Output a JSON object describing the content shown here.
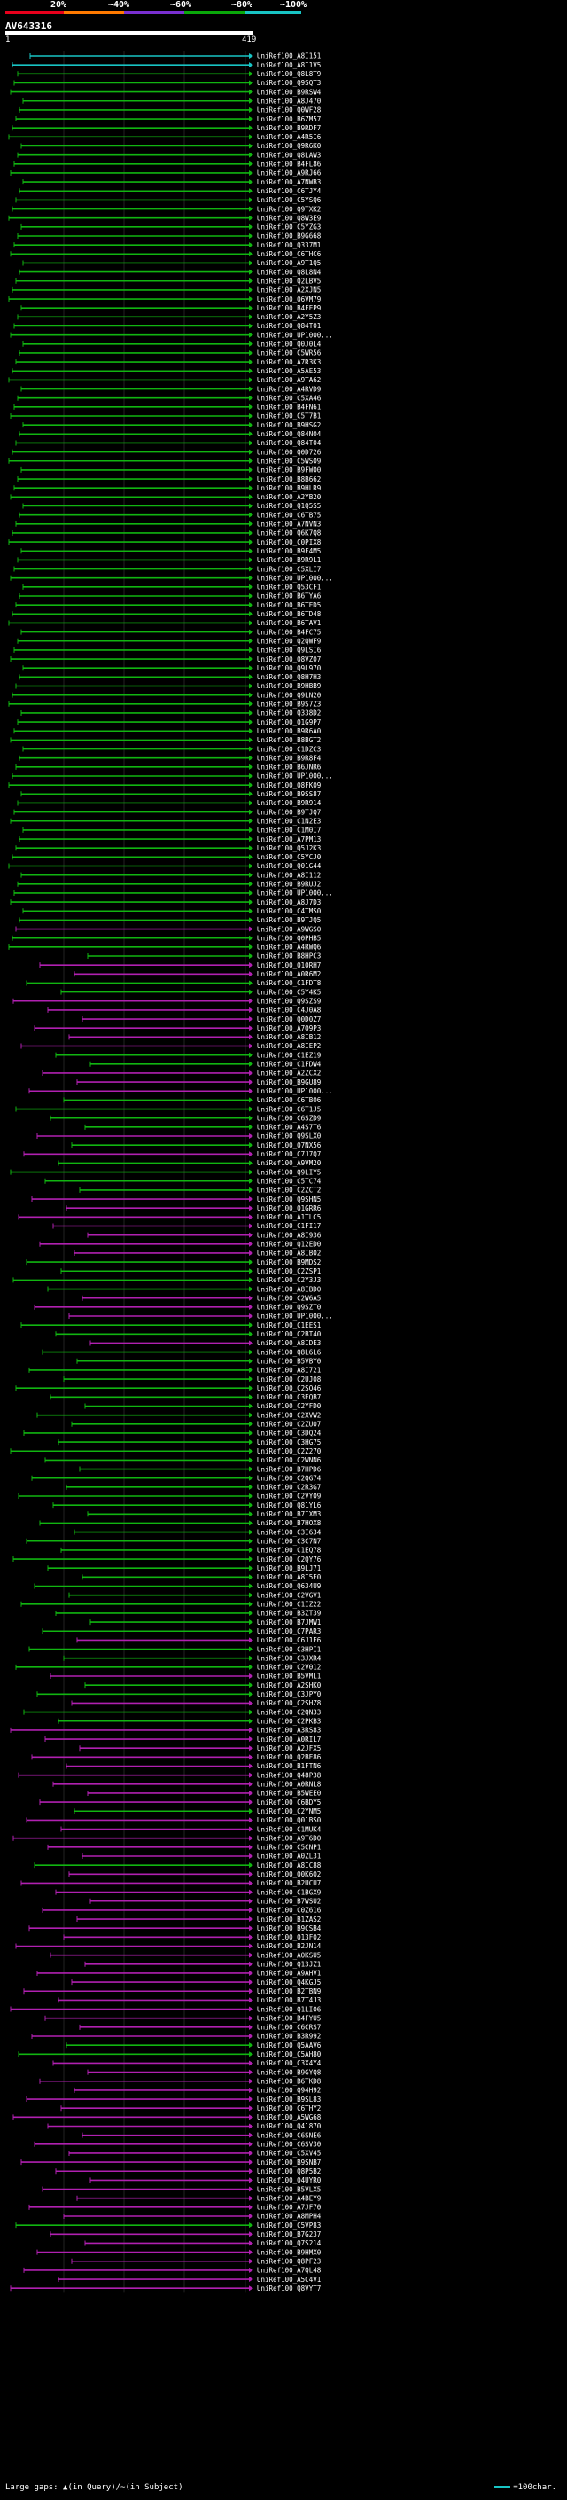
{
  "legend": {
    "labels": [
      "20%",
      "~40%",
      "~60%",
      "~80%",
      "~100%"
    ],
    "colors": [
      "#e8001c",
      "#ff7a00",
      "#7a2fd0",
      "#0aa80a",
      "#18c4c4"
    ]
  },
  "query": {
    "name": "AV643316",
    "start": "1",
    "end": "419"
  },
  "footer": {
    "gaps_text": "Large gaps: ▲(in Query)/~(in Subject)",
    "scale_text": "=100char."
  },
  "hit_colors": {
    "cyan": "#18c4c4",
    "green": "#11b511",
    "magenta": "#b020b0"
  },
  "hits": [
    {
      "name": "UniRef100_A8I151",
      "color": "cyan"
    },
    {
      "name": "UniRef100_A8I1V5",
      "color": "cyan"
    },
    {
      "name": "UniRef100_Q8L8T9",
      "color": "green"
    },
    {
      "name": "UniRef100_Q9SQT3",
      "color": "green"
    },
    {
      "name": "UniRef100_B9RSW4",
      "color": "green"
    },
    {
      "name": "UniRef100_A8J470",
      "color": "green"
    },
    {
      "name": "UniRef100_Q0WF28",
      "color": "green"
    },
    {
      "name": "UniRef100_B6ZM57",
      "color": "green"
    },
    {
      "name": "UniRef100_B9RDF7",
      "color": "green"
    },
    {
      "name": "UniRef100_A4R5I6",
      "color": "green"
    },
    {
      "name": "UniRef100_Q9R6K0",
      "color": "green"
    },
    {
      "name": "UniRef100_Q8LAW3",
      "color": "green"
    },
    {
      "name": "UniRef100_B4FL86",
      "color": "green"
    },
    {
      "name": "UniRef100_A9RJ66",
      "color": "green"
    },
    {
      "name": "UniRef100_A7NWB3",
      "color": "green"
    },
    {
      "name": "UniRef100_C6TJY4",
      "color": "green"
    },
    {
      "name": "UniRef100_C5YSQ6",
      "color": "green"
    },
    {
      "name": "UniRef100_Q9TXK2",
      "color": "green"
    },
    {
      "name": "UniRef100_Q8W3E9",
      "color": "green"
    },
    {
      "name": "UniRef100_C5YZG3",
      "color": "green"
    },
    {
      "name": "UniRef100_B9G668",
      "color": "green"
    },
    {
      "name": "UniRef100_Q337M1",
      "color": "green"
    },
    {
      "name": "UniRef100_C6THC6",
      "color": "green"
    },
    {
      "name": "UniRef100_A9T1Q5",
      "color": "green"
    },
    {
      "name": "UniRef100_Q8L8N4",
      "color": "green"
    },
    {
      "name": "UniRef100_Q2LBV5",
      "color": "green"
    },
    {
      "name": "UniRef100_A2XJN5",
      "color": "green"
    },
    {
      "name": "UniRef100_Q6VM79",
      "color": "green"
    },
    {
      "name": "UniRef100_B4FEP9",
      "color": "green"
    },
    {
      "name": "UniRef100_A2Y5Z3",
      "color": "green"
    },
    {
      "name": "UniRef100_Q84T01",
      "color": "green"
    },
    {
      "name": "UniRef100_UP1000...",
      "color": "green"
    },
    {
      "name": "UniRef100_Q0J0L4",
      "color": "green"
    },
    {
      "name": "UniRef100_C5WR56",
      "color": "green"
    },
    {
      "name": "UniRef100_A7R3K3",
      "color": "green"
    },
    {
      "name": "UniRef100_A5AE53",
      "color": "green"
    },
    {
      "name": "UniRef100_A9TA62",
      "color": "green"
    },
    {
      "name": "UniRef100_A4RVD9",
      "color": "green"
    },
    {
      "name": "UniRef100_C5XA46",
      "color": "green"
    },
    {
      "name": "UniRef100_B4FN61",
      "color": "green"
    },
    {
      "name": "UniRef100_C5T7B1",
      "color": "green"
    },
    {
      "name": "UniRef100_B9HSG2",
      "color": "green"
    },
    {
      "name": "UniRef100_Q84N04",
      "color": "green"
    },
    {
      "name": "UniRef100_Q84T04",
      "color": "green"
    },
    {
      "name": "UniRef100_Q0D726",
      "color": "green"
    },
    {
      "name": "UniRef100_C5WS09",
      "color": "green"
    },
    {
      "name": "UniRef100_B9FW00",
      "color": "green"
    },
    {
      "name": "UniRef100_B8B662",
      "color": "green"
    },
    {
      "name": "UniRef100_B9HLR9",
      "color": "green"
    },
    {
      "name": "UniRef100_A2YB20",
      "color": "green"
    },
    {
      "name": "UniRef100_Q1Q5S5",
      "color": "green"
    },
    {
      "name": "UniRef100_C6TB75",
      "color": "green"
    },
    {
      "name": "UniRef100_A7NVN3",
      "color": "green"
    },
    {
      "name": "UniRef100_Q6K7Q8",
      "color": "green"
    },
    {
      "name": "UniRef100_C0PIX8",
      "color": "green"
    },
    {
      "name": "UniRef100_B9F4M5",
      "color": "green"
    },
    {
      "name": "UniRef100_B9R9L1",
      "color": "green"
    },
    {
      "name": "UniRef100_C5XLI7",
      "color": "green"
    },
    {
      "name": "UniRef100_UP1000...",
      "color": "green"
    },
    {
      "name": "UniRef100_Q53CF1",
      "color": "green"
    },
    {
      "name": "UniRef100_B6TYA6",
      "color": "green"
    },
    {
      "name": "UniRef100_B6TED5",
      "color": "green"
    },
    {
      "name": "UniRef100_B6TD48",
      "color": "green"
    },
    {
      "name": "UniRef100_B6TAV1",
      "color": "green"
    },
    {
      "name": "UniRef100_B4FC75",
      "color": "green"
    },
    {
      "name": "UniRef100_Q2QWF9",
      "color": "green"
    },
    {
      "name": "UniRef100_Q9LSI6",
      "color": "green"
    },
    {
      "name": "UniRef100_Q8VZ07",
      "color": "green"
    },
    {
      "name": "UniRef100_Q9L970",
      "color": "green"
    },
    {
      "name": "UniRef100_Q8H7H3",
      "color": "green"
    },
    {
      "name": "UniRef100_B9HBB9",
      "color": "green"
    },
    {
      "name": "UniRef100_Q9LN20",
      "color": "green"
    },
    {
      "name": "UniRef100_B9S7Z3",
      "color": "green"
    },
    {
      "name": "UniRef100_Q338D2",
      "color": "green"
    },
    {
      "name": "UniRef100_Q1G9P7",
      "color": "green"
    },
    {
      "name": "UniRef100_B9R6A0",
      "color": "green"
    },
    {
      "name": "UniRef100_B8BGT2",
      "color": "green"
    },
    {
      "name": "UniRef100_C1DZC3",
      "color": "green"
    },
    {
      "name": "UniRef100_B9R8F4",
      "color": "green"
    },
    {
      "name": "UniRef100_B6JNR6",
      "color": "green"
    },
    {
      "name": "UniRef100_UP1000...",
      "color": "green"
    },
    {
      "name": "UniRef100_Q8FK09",
      "color": "green"
    },
    {
      "name": "UniRef100_B9SS87",
      "color": "green"
    },
    {
      "name": "UniRef100_B9R914",
      "color": "green"
    },
    {
      "name": "UniRef100_B9TJQ7",
      "color": "green"
    },
    {
      "name": "UniRef100_C1N2E3",
      "color": "green"
    },
    {
      "name": "UniRef100_C1M0I7",
      "color": "green"
    },
    {
      "name": "UniRef100_A7PM13",
      "color": "green"
    },
    {
      "name": "UniRef100_Q5J2K3",
      "color": "green"
    },
    {
      "name": "UniRef100_C5YCJ0",
      "color": "green"
    },
    {
      "name": "UniRef100_Q01G44",
      "color": "green"
    },
    {
      "name": "UniRef100_A8I112",
      "color": "green"
    },
    {
      "name": "UniRef100_B9RUJ2",
      "color": "green"
    },
    {
      "name": "UniRef100_UP1000...",
      "color": "green"
    },
    {
      "name": "UniRef100_A8J7D3",
      "color": "green"
    },
    {
      "name": "UniRef100_C4TMS0",
      "color": "green"
    },
    {
      "name": "UniRef100_B9TJQ5",
      "color": "green"
    },
    {
      "name": "UniRef100_A9WGS0",
      "color": "magenta"
    },
    {
      "name": "UniRef100_Q0PHB5",
      "color": "green"
    },
    {
      "name": "UniRef100_A4RWQ6",
      "color": "green"
    },
    {
      "name": "UniRef100_B8HPC3",
      "color": "green"
    },
    {
      "name": "UniRef100_Q10RH7",
      "color": "magenta"
    },
    {
      "name": "UniRef100_A0R6M2",
      "color": "magenta"
    },
    {
      "name": "UniRef100_C1FDT8",
      "color": "green"
    },
    {
      "name": "UniRef100_C5Y4K5",
      "color": "green"
    },
    {
      "name": "UniRef100_Q9SZS9",
      "color": "magenta"
    },
    {
      "name": "UniRef100_C4J0A8",
      "color": "magenta"
    },
    {
      "name": "UniRef100_Q0D0Z7",
      "color": "magenta"
    },
    {
      "name": "UniRef100_A7Q9P3",
      "color": "magenta"
    },
    {
      "name": "UniRef100_A8IB12",
      "color": "magenta"
    },
    {
      "name": "UniRef100_A8IEP2",
      "color": "magenta"
    },
    {
      "name": "UniRef100_C1EZ19",
      "color": "green"
    },
    {
      "name": "UniRef100_C1FDW4",
      "color": "green"
    },
    {
      "name": "UniRef100_A2ZCX2",
      "color": "magenta"
    },
    {
      "name": "UniRef100_B9GU89",
      "color": "magenta"
    },
    {
      "name": "UniRef100_UP1000...",
      "color": "magenta"
    },
    {
      "name": "UniRef100_C6TB06",
      "color": "green"
    },
    {
      "name": "UniRef100_C6T1J5",
      "color": "green"
    },
    {
      "name": "UniRef100_C6SZD9",
      "color": "green"
    },
    {
      "name": "UniRef100_A4S7T6",
      "color": "green"
    },
    {
      "name": "UniRef100_Q9SLX0",
      "color": "magenta"
    },
    {
      "name": "UniRef100_Q7NX56",
      "color": "green"
    },
    {
      "name": "UniRef100_C7J7Q7",
      "color": "magenta"
    },
    {
      "name": "UniRef100_A9VM20",
      "color": "green"
    },
    {
      "name": "UniRef100_Q9LIY5",
      "color": "green"
    },
    {
      "name": "UniRef100_C5TC74",
      "color": "green"
    },
    {
      "name": "UniRef100_C2ZCT2",
      "color": "green"
    },
    {
      "name": "UniRef100_Q9SHN5",
      "color": "magenta"
    },
    {
      "name": "UniRef100_Q1GRR6",
      "color": "magenta"
    },
    {
      "name": "UniRef100_A1TLC5",
      "color": "magenta"
    },
    {
      "name": "UniRef100_C1FI17",
      "color": "magenta"
    },
    {
      "name": "UniRef100_A8I936",
      "color": "magenta"
    },
    {
      "name": "UniRef100_Q12ED0",
      "color": "magenta"
    },
    {
      "name": "UniRef100_A8IB02",
      "color": "magenta"
    },
    {
      "name": "UniRef100_B9MDS2",
      "color": "green"
    },
    {
      "name": "UniRef100_C2ZSP1",
      "color": "green"
    },
    {
      "name": "UniRef100_C2Y3J3",
      "color": "green"
    },
    {
      "name": "UniRef100_A8IBD0",
      "color": "green"
    },
    {
      "name": "UniRef100_C2W6A5",
      "color": "magenta"
    },
    {
      "name": "UniRef100_Q9SZT0",
      "color": "magenta"
    },
    {
      "name": "UniRef100_UP1000...",
      "color": "magenta"
    },
    {
      "name": "UniRef100_C1EES1",
      "color": "green"
    },
    {
      "name": "UniRef100_C2BT40",
      "color": "green"
    },
    {
      "name": "UniRef100_A8IDE3",
      "color": "magenta"
    },
    {
      "name": "UniRef100_Q8L6L6",
      "color": "green"
    },
    {
      "name": "UniRef100_B5VBY0",
      "color": "green"
    },
    {
      "name": "UniRef100_A8I721",
      "color": "green"
    },
    {
      "name": "UniRef100_C2UJ08",
      "color": "green"
    },
    {
      "name": "UniRef100_C2SQ46",
      "color": "green"
    },
    {
      "name": "UniRef100_C3EQB7",
      "color": "green"
    },
    {
      "name": "UniRef100_C2YFD0",
      "color": "green"
    },
    {
      "name": "UniRef100_C2XVW2",
      "color": "green"
    },
    {
      "name": "UniRef100_C2ZU07",
      "color": "green"
    },
    {
      "name": "UniRef100_C3DQ24",
      "color": "green"
    },
    {
      "name": "UniRef100_C3HG75",
      "color": "green"
    },
    {
      "name": "UniRef100_C2Z270",
      "color": "green"
    },
    {
      "name": "UniRef100_C2WNN6",
      "color": "green"
    },
    {
      "name": "UniRef100_B7HPD6",
      "color": "green"
    },
    {
      "name": "UniRef100_C2QG74",
      "color": "green"
    },
    {
      "name": "UniRef100_C2R3G7",
      "color": "green"
    },
    {
      "name": "UniRef100_C2VY09",
      "color": "green"
    },
    {
      "name": "UniRef100_Q81YL6",
      "color": "green"
    },
    {
      "name": "UniRef100_B7IXM3",
      "color": "green"
    },
    {
      "name": "UniRef100_B7HOX8",
      "color": "green"
    },
    {
      "name": "UniRef100_C3I634",
      "color": "green"
    },
    {
      "name": "UniRef100_C3C7N7",
      "color": "green"
    },
    {
      "name": "UniRef100_C1EQ78",
      "color": "green"
    },
    {
      "name": "UniRef100_C2QY76",
      "color": "green"
    },
    {
      "name": "UniRef100_B9LJ71",
      "color": "green"
    },
    {
      "name": "UniRef100_A8I5E0",
      "color": "green"
    },
    {
      "name": "UniRef100_Q634U9",
      "color": "green"
    },
    {
      "name": "UniRef100_C2VGV1",
      "color": "green"
    },
    {
      "name": "UniRef100_C1IZ22",
      "color": "green"
    },
    {
      "name": "UniRef100_B3ZT39",
      "color": "green"
    },
    {
      "name": "UniRef100_B7JMW1",
      "color": "green"
    },
    {
      "name": "UniRef100_C7PAR3",
      "color": "green"
    },
    {
      "name": "UniRef100_C6J1E6",
      "color": "magenta"
    },
    {
      "name": "UniRef100_C3HPI1",
      "color": "green"
    },
    {
      "name": "UniRef100_C3JXR4",
      "color": "green"
    },
    {
      "name": "UniRef100_C2V012",
      "color": "green"
    },
    {
      "name": "UniRef100_B5VML1",
      "color": "magenta"
    },
    {
      "name": "UniRef100_A2SHK0",
      "color": "green"
    },
    {
      "name": "UniRef100_C3JPY0",
      "color": "green"
    },
    {
      "name": "UniRef100_C2SHZ8",
      "color": "magenta"
    },
    {
      "name": "UniRef100_C2QN33",
      "color": "green"
    },
    {
      "name": "UniRef100_C2PKB3",
      "color": "green"
    },
    {
      "name": "UniRef100_A3RS83",
      "color": "magenta"
    },
    {
      "name": "UniRef100_A0RIL7",
      "color": "magenta"
    },
    {
      "name": "UniRef100_A2JFX5",
      "color": "magenta"
    },
    {
      "name": "UniRef100_Q2BE86",
      "color": "magenta"
    },
    {
      "name": "UniRef100_B1FTN6",
      "color": "magenta"
    },
    {
      "name": "UniRef100_Q48P38",
      "color": "magenta"
    },
    {
      "name": "UniRef100_A0RNL8",
      "color": "magenta"
    },
    {
      "name": "UniRef100_B5WEE0",
      "color": "magenta"
    },
    {
      "name": "UniRef100_C6BDY5",
      "color": "magenta"
    },
    {
      "name": "UniRef100_C2YNM5",
      "color": "green"
    },
    {
      "name": "UniRef100_Q01BS0",
      "color": "magenta"
    },
    {
      "name": "UniRef100_C1MUK4",
      "color": "magenta"
    },
    {
      "name": "UniRef100_A9T6D0",
      "color": "magenta"
    },
    {
      "name": "UniRef100_C5CNP1",
      "color": "magenta"
    },
    {
      "name": "UniRef100_A0ZL31",
      "color": "magenta"
    },
    {
      "name": "UniRef100_A8IC88",
      "color": "green"
    },
    {
      "name": "UniRef100_Q0K6Q2",
      "color": "magenta"
    },
    {
      "name": "UniRef100_B2UCU7",
      "color": "magenta"
    },
    {
      "name": "UniRef100_C1BGX9",
      "color": "magenta"
    },
    {
      "name": "UniRef100_B7WSU2",
      "color": "magenta"
    },
    {
      "name": "UniRef100_C0Z616",
      "color": "magenta"
    },
    {
      "name": "UniRef100_B1ZAS2",
      "color": "magenta"
    },
    {
      "name": "UniRef100_B9CSB4",
      "color": "magenta"
    },
    {
      "name": "UniRef100_Q13F02",
      "color": "magenta"
    },
    {
      "name": "UniRef100_B2JN14",
      "color": "magenta"
    },
    {
      "name": "UniRef100_A0KSU5",
      "color": "magenta"
    },
    {
      "name": "UniRef100_Q13JZ1",
      "color": "magenta"
    },
    {
      "name": "UniRef100_A9AHV1",
      "color": "magenta"
    },
    {
      "name": "UniRef100_Q4KGJ5",
      "color": "magenta"
    },
    {
      "name": "UniRef100_B2TBN9",
      "color": "magenta"
    },
    {
      "name": "UniRef100_B7T4J3",
      "color": "magenta"
    },
    {
      "name": "UniRef100_Q1LI06",
      "color": "magenta"
    },
    {
      "name": "UniRef100_B4FYU5",
      "color": "magenta"
    },
    {
      "name": "UniRef100_C6CRS7",
      "color": "magenta"
    },
    {
      "name": "UniRef100_B3R992",
      "color": "magenta"
    },
    {
      "name": "UniRef100_Q5AAV6",
      "color": "green"
    },
    {
      "name": "UniRef100_C5AH80",
      "color": "green"
    },
    {
      "name": "UniRef100_C3X4Y4",
      "color": "magenta"
    },
    {
      "name": "UniRef100_B9GYQ8",
      "color": "magenta"
    },
    {
      "name": "UniRef100_B6TKD8",
      "color": "magenta"
    },
    {
      "name": "UniRef100_Q94H92",
      "color": "magenta"
    },
    {
      "name": "UniRef100_B9SL83",
      "color": "magenta"
    },
    {
      "name": "UniRef100_C6THY2",
      "color": "magenta"
    },
    {
      "name": "UniRef100_A5WG68",
      "color": "magenta"
    },
    {
      "name": "UniRef100_Q41870",
      "color": "magenta"
    },
    {
      "name": "UniRef100_C6SNE6",
      "color": "magenta"
    },
    {
      "name": "UniRef100_C6SV30",
      "color": "magenta"
    },
    {
      "name": "UniRef100_C5XV45",
      "color": "magenta"
    },
    {
      "name": "UniRef100_B9SNB7",
      "color": "magenta"
    },
    {
      "name": "UniRef100_Q8P5B2",
      "color": "magenta"
    },
    {
      "name": "UniRef100_Q4UYR0",
      "color": "magenta"
    },
    {
      "name": "UniRef100_B5VLX5",
      "color": "magenta"
    },
    {
      "name": "UniRef100_A4BEY9",
      "color": "magenta"
    },
    {
      "name": "UniRef100_A7JF70",
      "color": "magenta"
    },
    {
      "name": "UniRef100_A8MPH4",
      "color": "magenta"
    },
    {
      "name": "UniRef100_C5VP83",
      "color": "green"
    },
    {
      "name": "UniRef100_B7G237",
      "color": "magenta"
    },
    {
      "name": "UniRef100_Q7S214",
      "color": "magenta"
    },
    {
      "name": "UniRef100_B9HMX0",
      "color": "magenta"
    },
    {
      "name": "UniRef100_Q8PF23",
      "color": "magenta"
    },
    {
      "name": "UniRef100_A7QL48",
      "color": "magenta"
    },
    {
      "name": "UniRef100_A5C4V1",
      "color": "magenta"
    },
    {
      "name": "UniRef100_Q8VYT7",
      "color": "magenta"
    }
  ]
}
